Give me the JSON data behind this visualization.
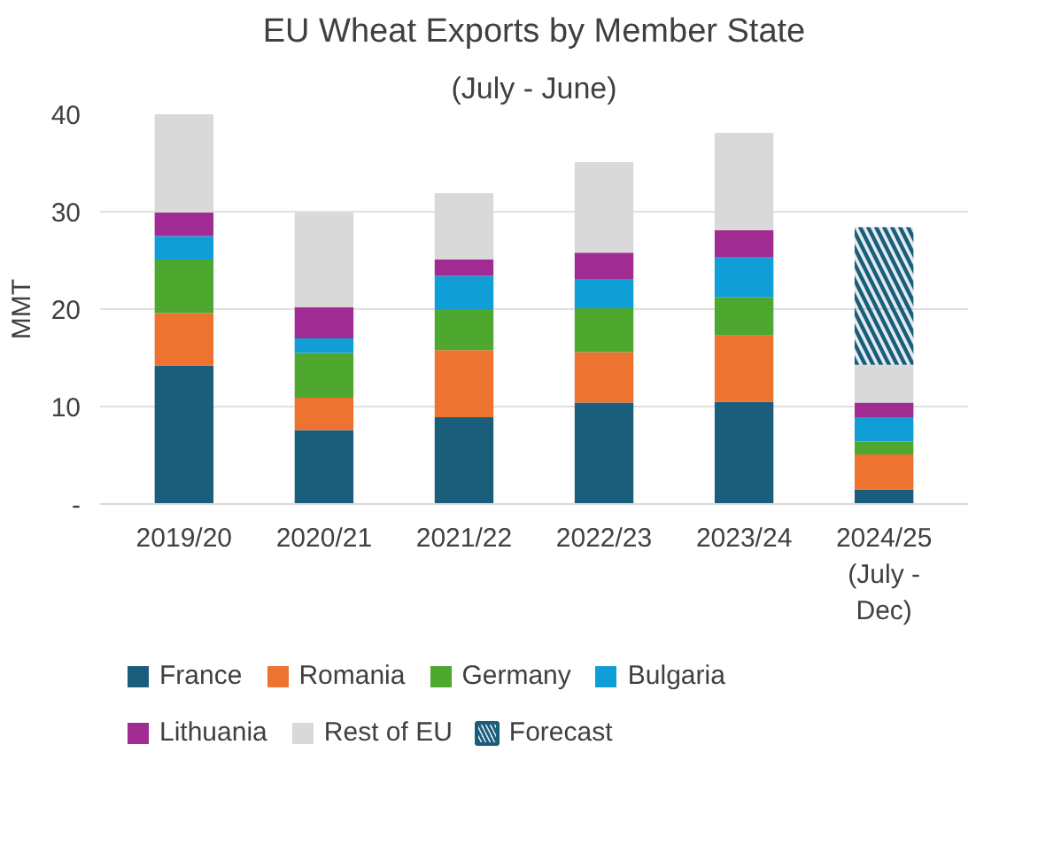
{
  "chart_data": {
    "type": "bar",
    "stacked": true,
    "title": "EU Wheat Exports by Member State",
    "subtitle": "(July - June)",
    "ylabel": "MMT",
    "categories": [
      "2019/20",
      "2020/21",
      "2021/22",
      "2022/23",
      "2023/24",
      "2024/25\n(July -\nDec)"
    ],
    "series": [
      {
        "name": "France",
        "color": "#1b5e7b",
        "values": [
          14.2,
          7.6,
          8.9,
          10.4,
          10.5,
          1.5
        ]
      },
      {
        "name": "Romania",
        "color": "#ed7331",
        "values": [
          5.4,
          3.3,
          6.9,
          5.2,
          6.8,
          3.6
        ]
      },
      {
        "name": "Germany",
        "color": "#4ea72e",
        "values": [
          5.5,
          4.6,
          4.2,
          4.5,
          3.9,
          1.3
        ]
      },
      {
        "name": "Bulgaria",
        "color": "#0f9ed5",
        "values": [
          2.4,
          1.5,
          3.4,
          3.0,
          4.1,
          2.5
        ]
      },
      {
        "name": "Lithuania",
        "color": "#a02b93",
        "values": [
          2.4,
          3.2,
          1.7,
          2.7,
          2.8,
          1.5
        ]
      },
      {
        "name": "Rest of EU",
        "color": "#d9d9d9",
        "values": [
          10.1,
          9.7,
          6.8,
          9.3,
          10.0,
          3.9
        ]
      },
      {
        "name": "Forecast",
        "color": "#1b5e7b",
        "line_style": "dashed",
        "values": [
          null,
          null,
          null,
          null,
          null,
          14.1
        ]
      }
    ],
    "ylim": [
      0,
      40
    ],
    "yticks": [
      {
        "value": 0,
        "label": "-"
      },
      10,
      20,
      30,
      40
    ],
    "grid": "y",
    "legend": "bottom"
  }
}
